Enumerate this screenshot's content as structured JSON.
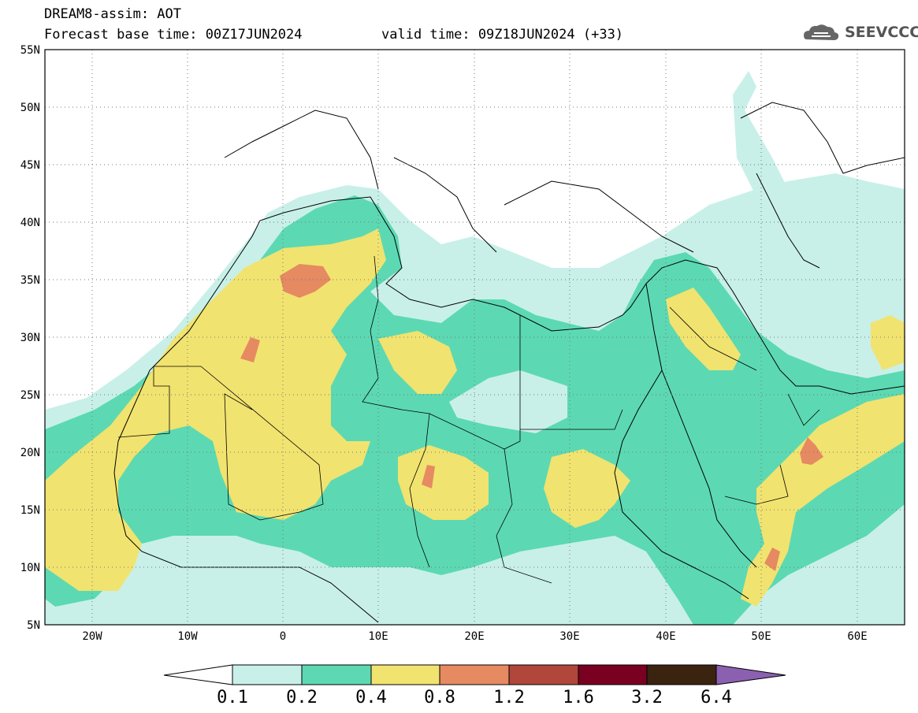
{
  "header": {
    "title_line1": "DREAM8-assim: AOT",
    "title_line2": "Forecast base time: 00Z17JUN2024",
    "valid_time": "valid time: 09Z18JUN2024 (+33)",
    "logo_text": "SEEVCCC"
  },
  "map": {
    "lat_labels": [
      "55N",
      "50N",
      "45N",
      "40N",
      "35N",
      "30N",
      "25N",
      "20N",
      "15N",
      "10N",
      "5N"
    ],
    "lon_labels": [
      "20W",
      "10W",
      "0",
      "10E",
      "20E",
      "30E",
      "40E",
      "50E",
      "60E"
    ],
    "lat_range": [
      5,
      55
    ],
    "lon_range": [
      -25,
      65
    ],
    "grid": "dotted"
  },
  "colorbar": {
    "labels": [
      "0.1",
      "0.2",
      "0.4",
      "0.8",
      "1.2",
      "1.6",
      "3.2",
      "6.4"
    ],
    "colors": [
      "#c8f0e8",
      "#5cd9b2",
      "#f1e36f",
      "#e68a62",
      "#b0473a",
      "#7a0022",
      "#3a2410",
      "#8c60b0"
    ]
  },
  "colors": {
    "low": "#c8f0e8",
    "medium": "#5cd9b2",
    "high": "#f1e36f",
    "very_high": "#e68a62"
  }
}
